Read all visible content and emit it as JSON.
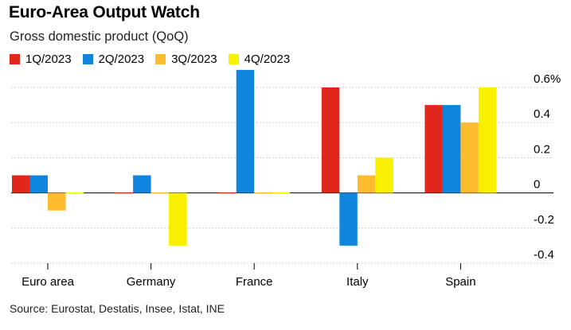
{
  "chart_data": {
    "type": "bar",
    "title": "Euro-Area Output Watch",
    "subtitle": "Gross domestic product (QoQ)",
    "categories": [
      "Euro area",
      "Germany",
      "France",
      "Italy",
      "Spain"
    ],
    "series": [
      {
        "name": "1Q/2023",
        "color": "#e1261c",
        "values": [
          0.1,
          0.0,
          0.0,
          0.6,
          0.5
        ]
      },
      {
        "name": "2Q/2023",
        "color": "#0f85de",
        "values": [
          0.1,
          0.1,
          0.7,
          -0.3,
          0.5
        ]
      },
      {
        "name": "3Q/2023",
        "color": "#fdbb30",
        "values": [
          -0.1,
          0.0,
          0.0,
          0.1,
          0.4
        ]
      },
      {
        "name": "4Q/2023",
        "color": "#f9f000",
        "values": [
          0.0,
          -0.3,
          0.0,
          0.2,
          0.6
        ]
      }
    ],
    "ylim": [
      -0.4,
      0.6
    ],
    "yticks": [
      0.6,
      0.4,
      0.2,
      0,
      -0.2,
      -0.4
    ],
    "ytick_labels": [
      "0.6%",
      "0.4",
      "0.2",
      "0",
      "-0.2",
      "-0.4"
    ],
    "grid": true,
    "legend_position": "top-left",
    "source": "Source: Eurostat, Destatis, Insee, Istat, INE"
  }
}
